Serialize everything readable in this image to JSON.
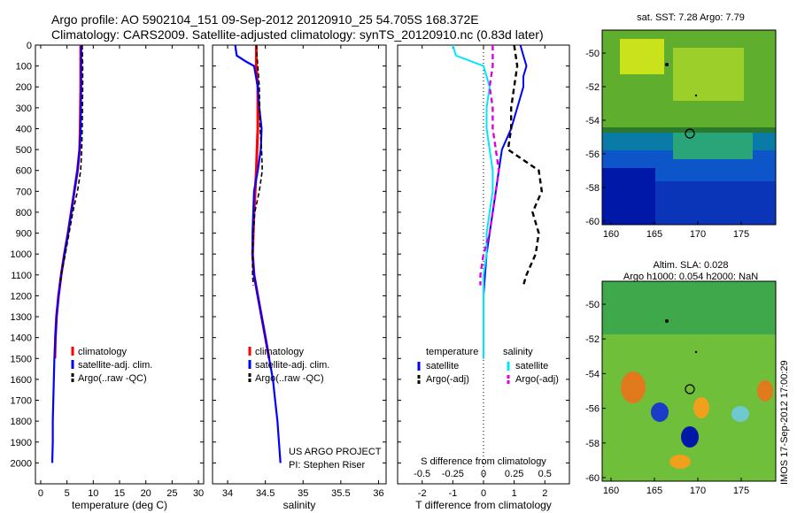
{
  "header": {
    "line1": "Argo profile: AO 5902104_151 09-Sep-2012 20120910_25 54.705S 168.372E",
    "line2": "Climatology: CARS2009. Satellite-adjusted climatology: synTS_20120910.nc (0.83d later)"
  },
  "credits": {
    "project": "US ARGO PROJECT",
    "pi": "PI: Stephen Riser",
    "side_stamp": "IMOS 17-Sep-2012 17:00:29"
  },
  "map1": {
    "title": "sat. SST: 7.28 Argo: 7.79",
    "xticks": [
      "160",
      "165",
      "170",
      "175"
    ],
    "yticks": [
      "-50",
      "-52",
      "-54",
      "-56",
      "-58",
      "-60"
    ]
  },
  "map2": {
    "title1": "Altim. SLA: 0.028",
    "title2": "Argo h1000: 0.054 h2000: NaN",
    "xticks": [
      "160",
      "165",
      "170",
      "175"
    ],
    "yticks": [
      "-50",
      "-52",
      "-54",
      "-56",
      "-58",
      "-60"
    ]
  },
  "colors": {
    "climatology": "#ff0000",
    "satellite": "#0000ff",
    "argo": "#000000",
    "sal_satellite": "#00e5ff",
    "sal_argo": "#e000e0"
  },
  "chart_data": [
    {
      "type": "line",
      "xlabel": "temperature (deg C)",
      "ylabel": "",
      "xlim": [
        -1,
        31
      ],
      "ylim": [
        2100,
        0
      ],
      "xticks": [
        0,
        5,
        10,
        15,
        20,
        25,
        30
      ],
      "yticks": [
        0,
        100,
        200,
        300,
        400,
        500,
        600,
        700,
        800,
        900,
        1000,
        1100,
        1200,
        1300,
        1400,
        1500,
        1600,
        1700,
        1800,
        1900,
        2000
      ],
      "legend": [
        "climatology",
        "satellite-adj. clim.",
        "Argo(..raw -QC)"
      ],
      "series": [
        {
          "name": "climatology",
          "points": [
            [
              7.6,
              0
            ],
            [
              7.6,
              200
            ],
            [
              7.5,
              400
            ],
            [
              7.4,
              500
            ],
            [
              7.0,
              600
            ],
            [
              6.4,
              700
            ],
            [
              5.8,
              800
            ],
            [
              5.2,
              900
            ],
            [
              4.5,
              1000
            ],
            [
              3.9,
              1100
            ],
            [
              3.4,
              1200
            ],
            [
              3.0,
              1300
            ],
            [
              2.8,
              1400
            ],
            [
              2.7,
              1500
            ]
          ]
        },
        {
          "name": "satellite-adj. clim.",
          "points": [
            [
              7.7,
              0
            ],
            [
              7.7,
              200
            ],
            [
              7.6,
              400
            ],
            [
              7.4,
              500
            ],
            [
              7.0,
              600
            ],
            [
              6.4,
              700
            ],
            [
              5.8,
              800
            ],
            [
              5.2,
              900
            ],
            [
              4.5,
              1000
            ],
            [
              3.9,
              1100
            ],
            [
              3.4,
              1200
            ],
            [
              3.0,
              1300
            ],
            [
              2.8,
              1400
            ],
            [
              2.6,
              1500
            ],
            [
              2.5,
              1600
            ],
            [
              2.4,
              1700
            ],
            [
              2.3,
              1800
            ],
            [
              2.3,
              1900
            ],
            [
              2.2,
              2000
            ]
          ]
        },
        {
          "name": "Argo(..raw -QC)",
          "points": [
            [
              7.9,
              0
            ],
            [
              8.0,
              100
            ],
            [
              8.0,
              200
            ],
            [
              7.9,
              400
            ],
            [
              7.8,
              500
            ],
            [
              7.6,
              600
            ],
            [
              7.0,
              700
            ],
            [
              6.1,
              800
            ],
            [
              5.4,
              900
            ],
            [
              4.7,
              1000
            ],
            [
              3.9,
              1100
            ],
            [
              3.6,
              1150
            ]
          ]
        }
      ]
    },
    {
      "type": "line",
      "xlabel": "salinity",
      "ylabel": "",
      "xlim": [
        33.8,
        36.1
      ],
      "ylim": [
        2100,
        0
      ],
      "xticks": [
        34,
        34.5,
        35,
        35.5,
        36
      ],
      "xticklabels": [
        "34",
        "34.5",
        "35",
        "35.5",
        "36"
      ],
      "legend": [
        "climatology",
        "satellite-adj. clim.",
        "Argo(..raw -QC)"
      ],
      "series": [
        {
          "name": "climatology",
          "points": [
            [
              34.38,
              0
            ],
            [
              34.38,
              100
            ],
            [
              34.4,
              200
            ],
            [
              34.4,
              400
            ],
            [
              34.38,
              600
            ],
            [
              34.35,
              800
            ],
            [
              34.33,
              1000
            ],
            [
              34.35,
              1100
            ],
            [
              34.4,
              1200
            ],
            [
              34.45,
              1300
            ],
            [
              34.5,
              1400
            ],
            [
              34.55,
              1500
            ]
          ]
        },
        {
          "name": "satellite-adj. clim.",
          "points": [
            [
              34.1,
              0
            ],
            [
              34.12,
              50
            ],
            [
              34.25,
              80
            ],
            [
              34.35,
              100
            ],
            [
              34.4,
              200
            ],
            [
              34.42,
              300
            ],
            [
              34.45,
              400
            ],
            [
              34.44,
              500
            ],
            [
              34.4,
              600
            ],
            [
              34.35,
              700
            ],
            [
              34.34,
              800
            ],
            [
              34.33,
              900
            ],
            [
              34.33,
              1000
            ],
            [
              34.35,
              1100
            ],
            [
              34.4,
              1200
            ],
            [
              34.45,
              1300
            ],
            [
              34.5,
              1400
            ],
            [
              34.55,
              1500
            ],
            [
              34.6,
              1600
            ],
            [
              34.63,
              1700
            ],
            [
              34.66,
              1800
            ],
            [
              34.68,
              1900
            ],
            [
              34.7,
              2000
            ]
          ]
        },
        {
          "name": "Argo(..raw -QC)",
          "points": [
            [
              34.38,
              0
            ],
            [
              34.4,
              100
            ],
            [
              34.42,
              200
            ],
            [
              34.43,
              400
            ],
            [
              34.45,
              500
            ],
            [
              34.46,
              600
            ],
            [
              34.42,
              700
            ],
            [
              34.36,
              800
            ],
            [
              34.34,
              900
            ],
            [
              34.33,
              1000
            ],
            [
              34.33,
              1100
            ],
            [
              34.34,
              1150
            ]
          ]
        }
      ]
    },
    {
      "type": "line",
      "xlabel": "T difference from climatology",
      "xlabel_top": "S difference from climatology",
      "xlim": [
        -2.8,
        2.8
      ],
      "ylim": [
        2100,
        0
      ],
      "xticks": [
        -2,
        -1,
        0,
        1,
        2
      ],
      "xticks_top": [
        -0.5,
        -0.25,
        0,
        0.25,
        0.5
      ],
      "legend_t": {
        "heading": "temperature",
        "items": [
          "satellite",
          "Argo(-adj)"
        ]
      },
      "legend_s": {
        "heading": "salinity",
        "items": [
          "satellite",
          "Argo(-adj)"
        ]
      },
      "series": [
        {
          "name": "T satellite",
          "points": [
            [
              1.2,
              0
            ],
            [
              1.3,
              50
            ],
            [
              1.4,
              100
            ],
            [
              1.3,
              150
            ],
            [
              1.3,
              200
            ],
            [
              1.1,
              300
            ],
            [
              0.9,
              400
            ],
            [
              0.6,
              500
            ],
            [
              0.5,
              600
            ],
            [
              0.4,
              700
            ],
            [
              0.3,
              800
            ],
            [
              0.2,
              900
            ],
            [
              0.1,
              1000
            ],
            [
              0.05,
              1100
            ],
            [
              0.0,
              1200
            ],
            [
              0.0,
              1300
            ],
            [
              0.0,
              1400
            ],
            [
              0.0,
              1500
            ]
          ]
        },
        {
          "name": "T Argo(-adj)",
          "points": [
            [
              1.0,
              0
            ],
            [
              1.1,
              100
            ],
            [
              1.0,
              200
            ],
            [
              0.9,
              300
            ],
            [
              0.9,
              400
            ],
            [
              0.8,
              500
            ],
            [
              1.8,
              600
            ],
            [
              1.9,
              700
            ],
            [
              1.6,
              800
            ],
            [
              1.8,
              900
            ],
            [
              1.7,
              1000
            ],
            [
              1.4,
              1100
            ],
            [
              1.3,
              1150
            ]
          ]
        },
        {
          "name": "S satellite",
          "points": [
            [
              -1.0,
              0
            ],
            [
              -0.9,
              50
            ],
            [
              0.0,
              100
            ],
            [
              0.1,
              150
            ],
            [
              0.2,
              200
            ],
            [
              0.1,
              300
            ],
            [
              0.1,
              400
            ],
            [
              0.2,
              500
            ],
            [
              0.3,
              600
            ],
            [
              0.3,
              700
            ],
            [
              0.2,
              800
            ],
            [
              0.1,
              900
            ],
            [
              0.1,
              1000
            ],
            [
              0.0,
              1100
            ],
            [
              0.0,
              1200
            ],
            [
              0.0,
              1300
            ],
            [
              0.0,
              1400
            ],
            [
              0.0,
              1500
            ]
          ]
        },
        {
          "name": "S Argo(-adj)",
          "points": [
            [
              0.3,
              0
            ],
            [
              0.3,
              100
            ],
            [
              0.2,
              200
            ],
            [
              0.3,
              300
            ],
            [
              0.3,
              400
            ],
            [
              0.4,
              500
            ],
            [
              0.5,
              600
            ],
            [
              0.4,
              700
            ],
            [
              0.3,
              800
            ],
            [
              0.2,
              900
            ],
            [
              0.0,
              1000
            ],
            [
              -0.1,
              1100
            ],
            [
              -0.1,
              1150
            ]
          ]
        }
      ]
    }
  ]
}
